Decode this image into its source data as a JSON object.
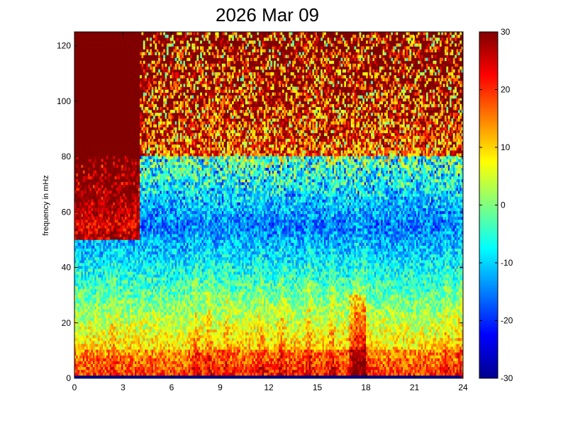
{
  "chart_data": {
    "type": "heatmap",
    "title": "2026 Mar 09",
    "xlabel": "",
    "ylabel": "frequency in mHz",
    "xlim": [
      0,
      24
    ],
    "ylim": [
      0,
      125
    ],
    "x_ticks": [
      0,
      3,
      6,
      9,
      12,
      15,
      18,
      21,
      24
    ],
    "y_ticks": [
      0,
      20,
      40,
      60,
      80,
      100,
      120
    ],
    "colorbar": {
      "range": [
        -30,
        30
      ],
      "ticks": [
        30,
        20,
        10,
        0,
        -10,
        -20,
        -30
      ],
      "colormap": "jet",
      "over_color": "#800000",
      "under_color": "#00008f"
    },
    "description_profile": {
      "bins_x": 232,
      "bins_y": 120,
      "low_freq_band_mhz": [
        0,
        10
      ],
      "low_freq_band_level": 10,
      "saturated_region_time_h": [
        0,
        4
      ],
      "saturated_region_freq_mhz": [
        50,
        125
      ],
      "transition_freq_mhz": [
        55,
        80
      ],
      "notable_bursts_time_h": [
        2.4,
        7.5,
        8.3,
        9.4,
        11.5,
        12.8,
        14.5,
        15.9,
        17.4,
        17.9,
        23.0,
        23.8
      ]
    }
  }
}
